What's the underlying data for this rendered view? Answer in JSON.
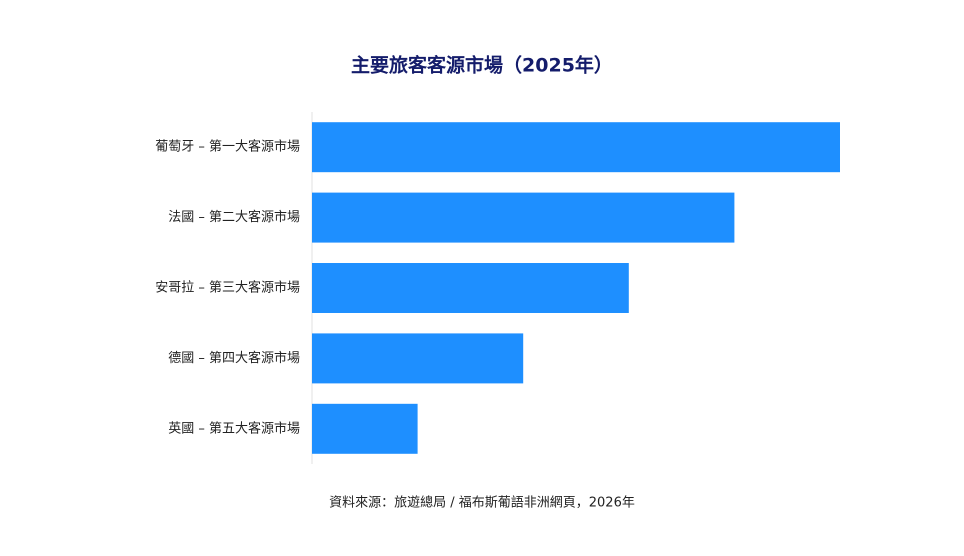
{
  "chart_data": {
    "type": "bar",
    "orientation": "horizontal",
    "title": "主要旅客客源市場（2025年）",
    "categories": [
      "葡萄牙 – 第一大客源市場",
      "法國 – 第二大客源市場",
      "安哥拉 – 第三大客源市場",
      "德國 – 第四大客源市場",
      "英國 – 第五大客源市場"
    ],
    "values": [
      5,
      4,
      3,
      2,
      1
    ],
    "color": "#1e8fff",
    "xlim": [
      0,
      5
    ],
    "source": "資料來源：旅遊總局 / 福布斯葡語非洲網頁，2026年"
  }
}
